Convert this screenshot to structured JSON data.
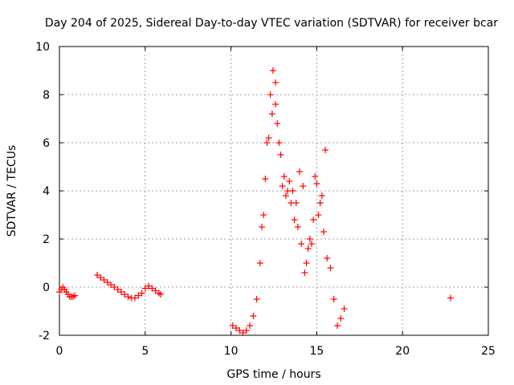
{
  "chart_data": {
    "type": "scatter",
    "title": "Day 204 of 2025, Sidereal Day-to-day VTEC variation (SDTVAR) for receiver bcar",
    "xlabel": "GPS time / hours",
    "ylabel": "SDTVAR / TECUs",
    "xlim": [
      0,
      25
    ],
    "ylim": [
      -2,
      10
    ],
    "xticks": [
      0,
      5,
      10,
      15,
      20,
      25
    ],
    "yticks": [
      -2,
      0,
      2,
      4,
      6,
      8,
      10
    ],
    "grid": true,
    "marker": "+",
    "color": "#ff0000",
    "series": [
      {
        "name": "SDTVAR",
        "x": [
          0.0,
          0.1,
          0.2,
          0.3,
          0.4,
          0.5,
          0.6,
          0.7,
          0.8,
          0.9,
          2.2,
          2.4,
          2.6,
          2.8,
          3.0,
          3.2,
          3.4,
          3.6,
          3.8,
          4.0,
          4.2,
          4.4,
          4.6,
          4.8,
          5.0,
          5.2,
          5.4,
          5.6,
          5.8,
          5.9,
          10.1,
          10.3,
          10.5,
          10.7,
          10.9,
          11.1,
          11.3,
          11.5,
          11.7,
          11.9,
          12.1,
          12.3,
          12.45,
          12.6,
          12.8,
          13.0,
          13.2,
          13.4,
          13.6,
          13.8,
          14.0,
          14.2,
          14.4,
          14.6,
          14.8,
          15.0,
          15.2,
          15.4,
          15.6,
          15.8,
          16.0,
          16.2,
          16.4,
          16.6,
          11.8,
          12.0,
          12.2,
          12.4,
          12.6,
          12.7,
          12.9,
          13.1,
          13.3,
          13.5,
          13.7,
          13.9,
          14.1,
          14.3,
          14.5,
          14.7,
          14.9,
          15.1,
          15.3,
          15.5,
          22.8
        ],
        "y": [
          -0.2,
          -0.1,
          0.0,
          -0.1,
          -0.2,
          -0.3,
          -0.4,
          -0.4,
          -0.4,
          -0.35,
          0.5,
          0.4,
          0.3,
          0.2,
          0.1,
          0.0,
          -0.1,
          -0.2,
          -0.3,
          -0.4,
          -0.45,
          -0.45,
          -0.35,
          -0.25,
          -0.05,
          0.05,
          -0.05,
          -0.15,
          -0.25,
          -0.3,
          -1.6,
          -1.7,
          -1.8,
          -1.9,
          -1.8,
          -1.6,
          -1.2,
          -0.5,
          1.0,
          3.0,
          6.0,
          8.0,
          9.0,
          8.5,
          6.0,
          4.2,
          3.8,
          4.4,
          4.0,
          3.5,
          4.8,
          4.2,
          1.0,
          2.0,
          2.8,
          4.3,
          3.5,
          2.3,
          1.2,
          0.8,
          -0.5,
          -1.6,
          -1.3,
          -0.9,
          2.5,
          4.5,
          6.2,
          7.2,
          7.6,
          6.8,
          5.5,
          4.6,
          4.0,
          3.5,
          2.8,
          2.5,
          1.8,
          0.6,
          1.6,
          1.8,
          4.6,
          3.0,
          3.8,
          5.7,
          -0.45
        ]
      }
    ]
  }
}
